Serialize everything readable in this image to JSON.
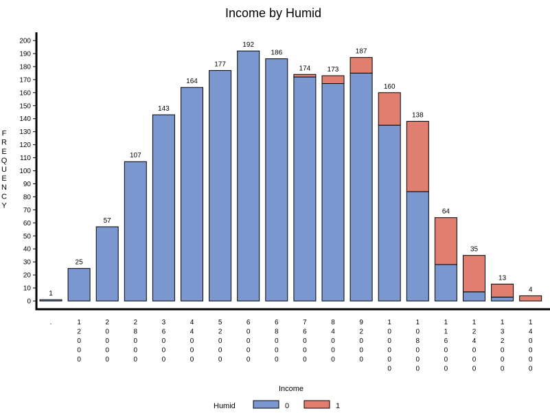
{
  "chart_data": {
    "type": "bar",
    "stacked": true,
    "title": "Income by Humid",
    "xlabel": "Income",
    "ylabel": "FREQUENCY",
    "ylim": [
      0,
      200
    ],
    "ytick_step": 10,
    "grid": false,
    "legend_position": "bottom",
    "legend_title": "Humid",
    "categories": [
      ".",
      "12000",
      "20000",
      "28000",
      "36000",
      "44000",
      "52000",
      "60000",
      "68000",
      "76000",
      "84000",
      "92000",
      "100000",
      "108000",
      "116000",
      "124000",
      "132000",
      "140000"
    ],
    "series": [
      {
        "name": "0",
        "color": "#7b97cf",
        "values": [
          1,
          25,
          57,
          107,
          143,
          164,
          177,
          192,
          186,
          172,
          167,
          175,
          135,
          84,
          28,
          7,
          3,
          0
        ]
      },
      {
        "name": "1",
        "color": "#e07f6f",
        "values": [
          0,
          0,
          0,
          0,
          0,
          0,
          0,
          0,
          0,
          2,
          6,
          12,
          25,
          54,
          36,
          28,
          10,
          4
        ]
      }
    ],
    "totals": [
      1,
      25,
      57,
      107,
      143,
      164,
      177,
      192,
      186,
      174,
      173,
      187,
      160,
      138,
      64,
      35,
      13,
      4
    ]
  }
}
